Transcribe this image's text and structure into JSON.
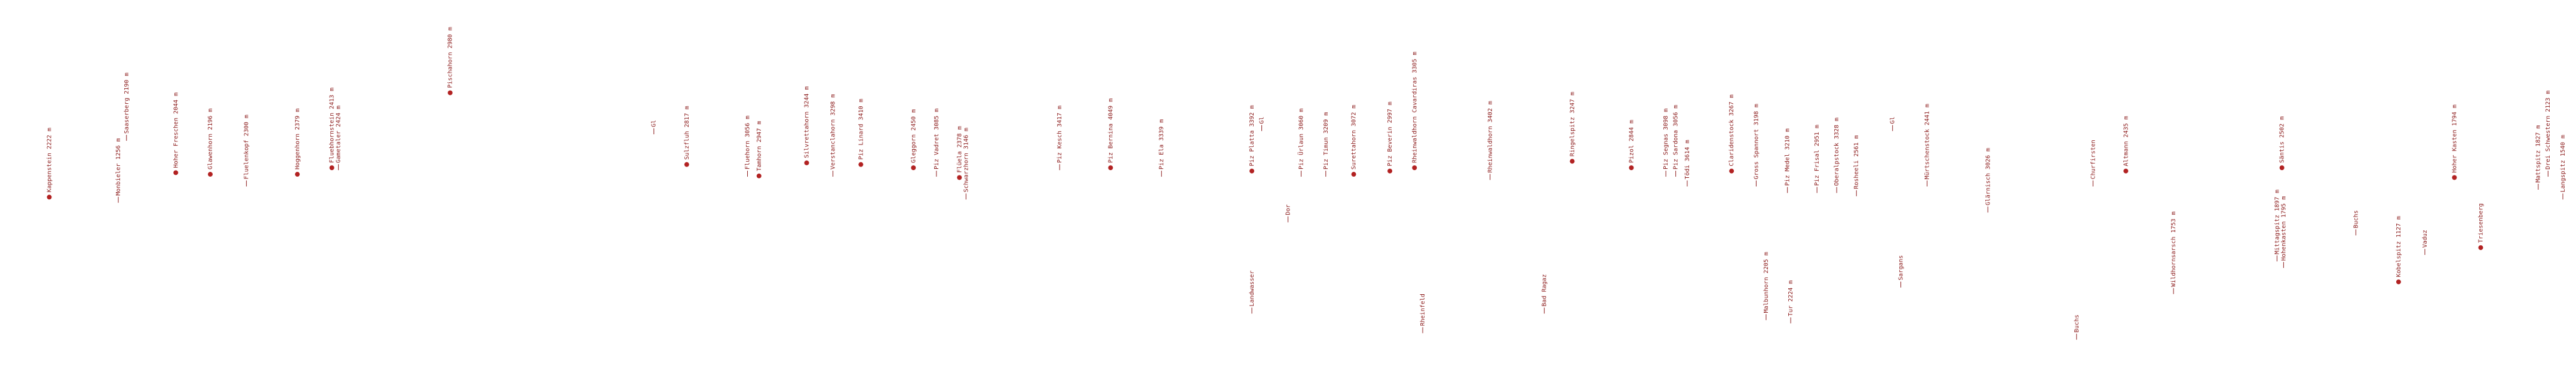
{
  "labels": [
    "Kappenstein 2222 m",
    "Monbieler 1256 m",
    "Saaserberg 2190 m",
    "Hoher Freschen 2044 m",
    "Glawenhorn 2196 m",
    "Fluelenkopf 2300 m",
    "Hoggenhorn 2379 m",
    "Fluebhornstein 2413 m",
    "Gametaler 2424 m",
    "Pischahorn 2980 m",
    "Gl",
    "Sulzfluh 2817 m",
    "Fluehorn 3056 m",
    "Tamhorn 2947 m",
    "Silvrettahorn 3244 m",
    "Verstanclahorn 3298 m",
    "Piz Linard 3410 m",
    "Gleggorn 2450 m",
    "Piz Vadret 3085 m",
    "Flüela 2378 m",
    "Schwarzhorn 3146 m",
    "Piz Kesch 3417 m",
    "Piz Bernina 4049 m",
    "Piz Ela 3339 m",
    "Piz Platta 3392 m",
    "Landwasser",
    "Gl",
    "Dor",
    "Piz Ürlaun 3060 m",
    "Piz Timun 3209 m",
    "Surettahorn 3072 m",
    "Piz Beverin 2997 m",
    "Rheinwaldhorn Cavardiras 3305 m",
    "Rheinfeld",
    "Rheinwaldhorn 3402 m",
    "Bad Ragaz",
    "Ringelspitz 3247 m",
    "Pizol 2844 m",
    "Piz Segnas 3098 m",
    "Piz Sardona 3056 m",
    "Tödi 3614 m",
    "Claridenstock 3267 m",
    "Gross Spannort 3198 m",
    "Malbunhorn 2205 m",
    "Tur 2224 m",
    "Piz Medel 3210 m",
    "Piz Frisal 2951 m",
    "Oberalpstock 3328 m",
    "Rosheeli 2561 m",
    "Gl",
    "Sargans",
    "Mürtschenstock 2441 m",
    "Glärnisch 3026 m",
    "Buchs",
    "Churfirsten",
    "Altmann 2435 m",
    "Wildhornsarsch 1753 m",
    "Mittagspitz 1897 m",
    "Säntis 2502 m",
    "Hohenkasten 1795 m",
    "Buchs",
    "Kobelspitz 1127 m",
    "Vaduz",
    "Hoher Kasten 1794 m",
    "Triesenberg",
    "Mattspitz 1827 m",
    "Drei Schwestern 2123 m",
    "Langspitz 1540 m"
  ]
}
